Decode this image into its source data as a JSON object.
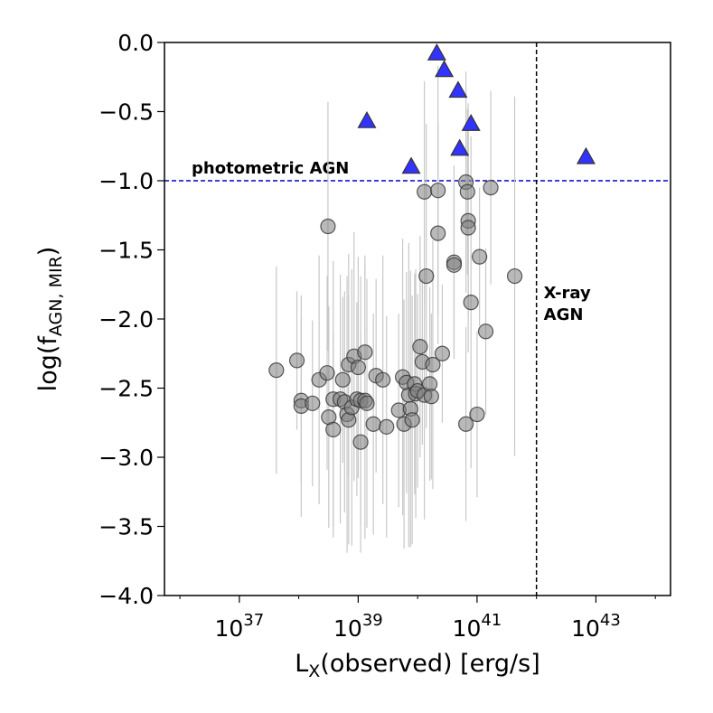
{
  "chart_data": {
    "type": "scatter",
    "x_label": {
      "text": "L",
      "sub": "X",
      "tail": "(observed) [erg/s]"
    },
    "y_label": {
      "text": "log(f",
      "sub": "AGN, MIR",
      "tail": ")"
    },
    "xscale": "log",
    "xlim": [
      5.5e+35,
      1.8e+44
    ],
    "ylim": [
      -4.0,
      0.0
    ],
    "xticks": [
      {
        "value": 1e+37,
        "label": "10",
        "exponent": "37"
      },
      {
        "value": 1e+39,
        "label": "10",
        "exponent": "39"
      },
      {
        "value": 1e+41,
        "label": "10",
        "exponent": "41"
      },
      {
        "value": 1e+43,
        "label": "10",
        "exponent": "43"
      }
    ],
    "xminor_ticks": [
      1e+36,
      1e+38,
      1e+40,
      1e+42,
      1e+44
    ],
    "yticks": [
      {
        "value": 0,
        "label": "0.0"
      },
      {
        "value": -0.5,
        "label": "−0.5"
      },
      {
        "value": -1,
        "label": "−1.0"
      },
      {
        "value": -1.5,
        "label": "−1.5"
      },
      {
        "value": -2,
        "label": "−2.0"
      },
      {
        "value": -2.5,
        "label": "−2.5"
      },
      {
        "value": -3,
        "label": "−3.0"
      },
      {
        "value": -3.5,
        "label": "−3.5"
      },
      {
        "value": -4,
        "label": "−4.0"
      }
    ],
    "hline": {
      "value": -1,
      "color": "#0000cc",
      "label": "photometric AGN"
    },
    "vline": {
      "value": 1e+42,
      "color": "#000000",
      "label": [
        "X-ray",
        "AGN"
      ]
    },
    "series": [
      {
        "marker": "circle",
        "color": "#808080",
        "error_color": "#c8c8c8",
        "x": [
          4.2e+37,
          9.3e+37,
          1.1e+38,
          1.1e+38,
          1.7e+38,
          2.2e+38,
          3e+38,
          3.1e+38,
          3.2e+38,
          3.8e+38,
          3.8e+38,
          5e+38,
          5.5e+38,
          5.9e+38,
          6.5e+38,
          6.9e+38,
          6.9e+38,
          7.8e+38,
          8.5e+38,
          9.5e+38,
          1e+39,
          1.1e+39,
          1.3e+39,
          1.1e+39,
          1.3e+39,
          1.4e+39,
          1.8e+39,
          2e+39,
          2.6e+39,
          3e+39,
          4.8e+39,
          5.6e+39,
          5.9e+39,
          6.5e+39,
          7.1e+39,
          7.6e+39,
          8.1e+39,
          8.9e+39,
          9.3e+39,
          1e+40,
          1.1e+40,
          1.2e+40,
          1.3e+40,
          1.3e+40,
          1.4e+40,
          1.6e+40,
          1.7e+40,
          1.8e+40,
          2.2e+40,
          2.2e+40,
          2.6e+40,
          4.1e+40,
          4.1e+40,
          6.5e+40,
          6.9e+40,
          7.1e+40,
          7.1e+40,
          7.9e+40,
          6.5e+40,
          1e+41,
          1.1e+41,
          1.4e+41,
          1.7e+41,
          4.3e+41
        ],
        "y": [
          -2.37,
          -2.3,
          -2.59,
          -2.63,
          -2.61,
          -2.44,
          -2.39,
          -1.33,
          -2.71,
          -2.58,
          -2.8,
          -2.58,
          -2.44,
          -2.6,
          -2.69,
          -2.73,
          -2.33,
          -2.64,
          -2.27,
          -2.58,
          -2.35,
          -2.59,
          -2.24,
          -2.89,
          -2.59,
          -2.61,
          -2.76,
          -2.41,
          -2.44,
          -2.78,
          -2.66,
          -2.42,
          -2.76,
          -2.46,
          -2.55,
          -2.65,
          -2.73,
          -2.47,
          -2.54,
          -2.52,
          -2.2,
          -2.31,
          -2.55,
          -1.08,
          -1.69,
          -2.47,
          -2.56,
          -2.33,
          -1.07,
          -1.38,
          -2.25,
          -1.59,
          -1.61,
          -1.01,
          -1.08,
          -1.29,
          -1.34,
          -1.88,
          -2.76,
          -2.69,
          -1.55,
          -2.09,
          -1.05,
          -1.69
        ],
        "errors": [
          0.75,
          0.5,
          0.6,
          0.8,
          0.6,
          0.9,
          0.7,
          0.9,
          0.8,
          1.0,
          0.7,
          0.9,
          0.6,
          0.8,
          1.0,
          0.9,
          0.8,
          1.0,
          0.9,
          0.7,
          0.8,
          0.9,
          0.7,
          0.8,
          1.0,
          0.9,
          0.8,
          0.7,
          0.9,
          0.8,
          0.7,
          1.0,
          0.9,
          0.8,
          1.1,
          1.0,
          0.9,
          0.8,
          0.9,
          0.7,
          0.8,
          0.6,
          0.9,
          0.8,
          1.1,
          0.7,
          0.6,
          0.9,
          0.9,
          0.8,
          0.5,
          0.7,
          0.6,
          0.8,
          0.6,
          0.7,
          0.9,
          1.2,
          0.7,
          0.6,
          0.5,
          0.6,
          0.7,
          1.3
        ]
      },
      {
        "marker": "triangle",
        "color": "#3333ff",
        "x": [
          1.4e+39,
          7.8e+39,
          2.1e+40,
          2.8e+40,
          4.8e+40,
          7.9e+40,
          5.1e+40,
          6.8e+42
        ],
        "y": [
          -0.57,
          -0.9,
          -0.08,
          -0.2,
          -0.35,
          -0.59,
          -0.77,
          -0.83
        ]
      }
    ]
  }
}
